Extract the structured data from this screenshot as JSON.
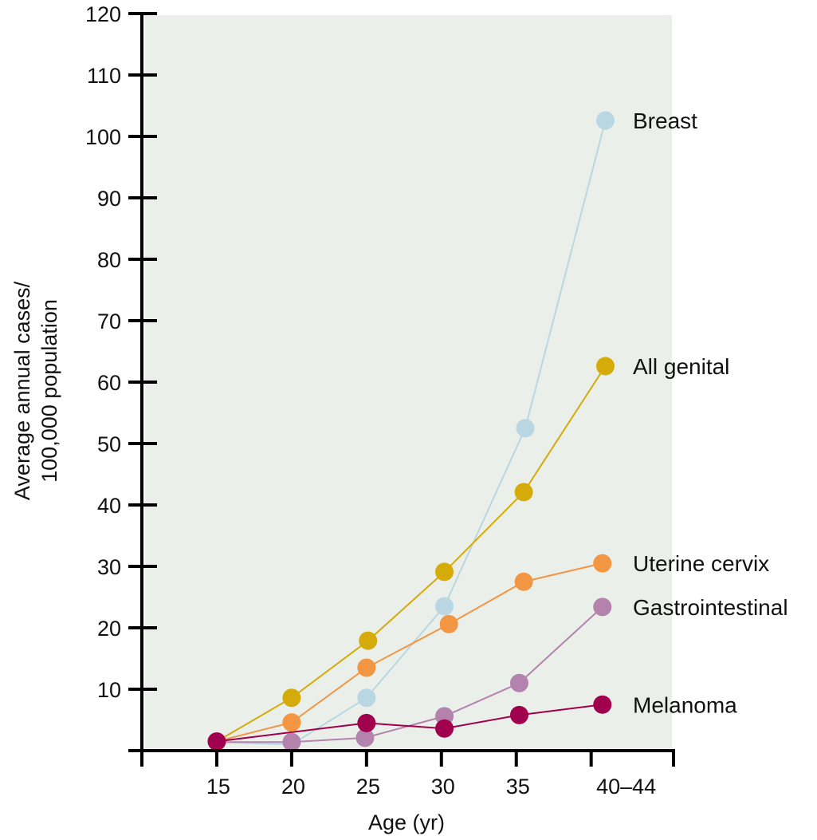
{
  "chart_data": {
    "type": "line",
    "title": "",
    "xlabel": "Age (yr)",
    "ylabel": [
      "Average annual cases/",
      "100,000 population"
    ],
    "xlim": [
      10,
      45.5
    ],
    "ylim": [
      0,
      120
    ],
    "grid": false,
    "legend": "inline-right",
    "background_color": "#eaefea",
    "x_ticks": [
      {
        "value": 10,
        "label": ""
      },
      {
        "value": 15,
        "label": "15"
      },
      {
        "value": 20,
        "label": "20"
      },
      {
        "value": 25,
        "label": "25"
      },
      {
        "value": 30,
        "label": "30"
      },
      {
        "value": 35,
        "label": "35"
      },
      {
        "value": 40,
        "label": "40–44"
      },
      {
        "value": 45.5,
        "label": ""
      }
    ],
    "y_ticks": [
      {
        "value": 0,
        "label": ""
      },
      {
        "value": 10,
        "label": "10"
      },
      {
        "value": 20,
        "label": "20"
      },
      {
        "value": 30,
        "label": "30"
      },
      {
        "value": 40,
        "label": "40"
      },
      {
        "value": 50,
        "label": "50"
      },
      {
        "value": 60,
        "label": "60"
      },
      {
        "value": 70,
        "label": "70"
      },
      {
        "value": 80,
        "label": "80"
      },
      {
        "value": 90,
        "label": "90"
      },
      {
        "value": 100,
        "label": "100"
      },
      {
        "value": 110,
        "label": "110"
      },
      {
        "value": 120,
        "label": "120"
      }
    ],
    "categories": [
      "15",
      "20",
      "25",
      "30",
      "35",
      "40–44"
    ],
    "series": [
      {
        "name": "Breast",
        "color": "#b9d7e2",
        "points": [
          {
            "x": 15,
            "y": 1.4,
            "marker": false
          },
          {
            "x": 20,
            "y": 1.0,
            "marker": false
          },
          {
            "x": 25,
            "y": 8.6,
            "marker": true
          },
          {
            "x": 30.2,
            "y": 23.5,
            "marker": true
          },
          {
            "x": 35.6,
            "y": 52.5,
            "marker": true
          },
          {
            "x": 40.95,
            "y": 102.6,
            "marker": true
          }
        ]
      },
      {
        "name": "All genital",
        "color": "#d5ab0a",
        "points": [
          {
            "x": 15,
            "y": 1.5,
            "marker": false
          },
          {
            "x": 20,
            "y": 8.6,
            "marker": true
          },
          {
            "x": 25.1,
            "y": 17.9,
            "marker": true
          },
          {
            "x": 30.2,
            "y": 29.1,
            "marker": true
          },
          {
            "x": 35.5,
            "y": 42.1,
            "marker": true
          },
          {
            "x": 40.95,
            "y": 62.6,
            "marker": true
          }
        ]
      },
      {
        "name": "Uterine cervix",
        "color": "#f29643",
        "points": [
          {
            "x": 15,
            "y": 1.5,
            "marker": false
          },
          {
            "x": 20,
            "y": 4.6,
            "marker": true
          },
          {
            "x": 25,
            "y": 13.5,
            "marker": true
          },
          {
            "x": 30.5,
            "y": 20.6,
            "marker": true
          },
          {
            "x": 35.5,
            "y": 27.5,
            "marker": true
          },
          {
            "x": 40.75,
            "y": 30.5,
            "marker": true
          }
        ]
      },
      {
        "name": "Gastrointestinal",
        "color": "#b383ad",
        "points": [
          {
            "x": 15,
            "y": 1.4,
            "marker": false
          },
          {
            "x": 20,
            "y": 1.4,
            "marker": true
          },
          {
            "x": 24.9,
            "y": 2.1,
            "marker": true
          },
          {
            "x": 30.2,
            "y": 5.6,
            "marker": true
          },
          {
            "x": 35.2,
            "y": 11.0,
            "marker": true
          },
          {
            "x": 40.75,
            "y": 23.4,
            "marker": true
          }
        ]
      },
      {
        "name": "Melanoma",
        "color": "#a0004d",
        "points": [
          {
            "x": 15,
            "y": 1.5,
            "marker": true
          },
          {
            "x": 20,
            "y": 3.0,
            "marker": false
          },
          {
            "x": 25,
            "y": 4.5,
            "marker": true
          },
          {
            "x": 30.2,
            "y": 3.6,
            "marker": true
          },
          {
            "x": 35.2,
            "y": 5.8,
            "marker": true
          },
          {
            "x": 40.75,
            "y": 7.5,
            "marker": true
          }
        ]
      }
    ]
  }
}
